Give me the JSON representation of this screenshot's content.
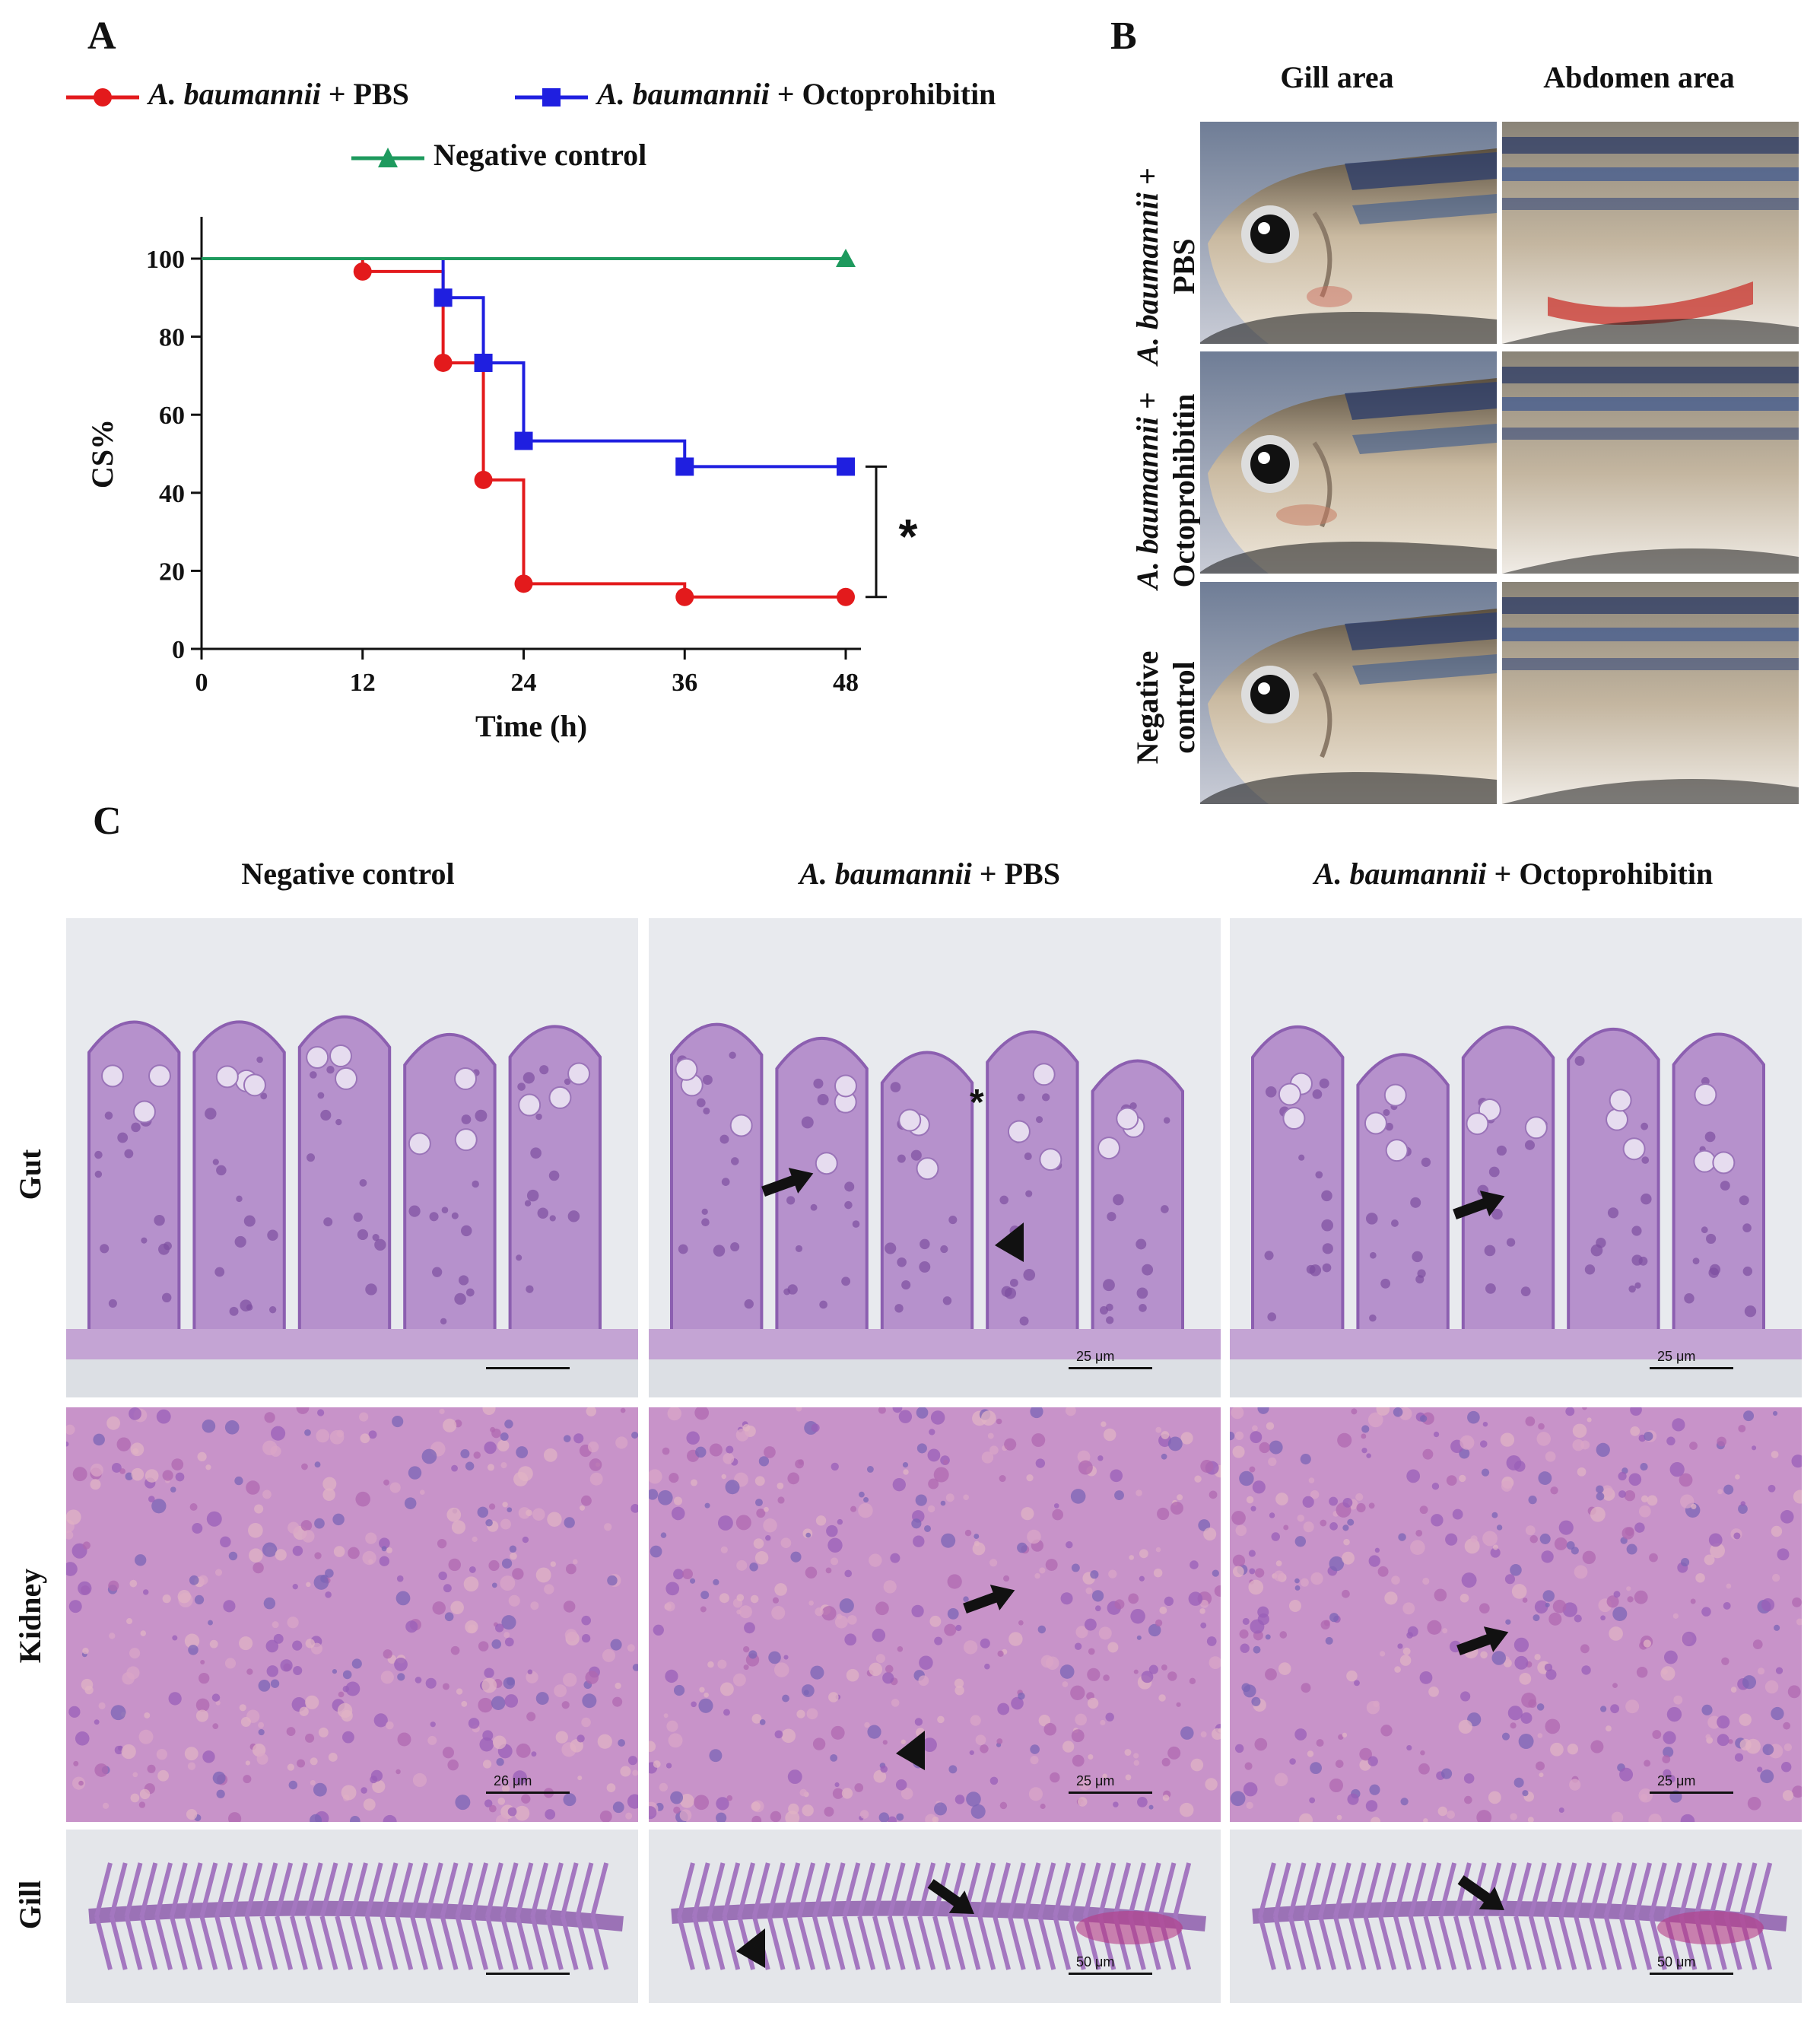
{
  "panel_a": {
    "letter": "A",
    "legend": [
      {
        "italic": "A. baumannii",
        "rest": " + PBS",
        "color": "#e31a1c",
        "marker": "circle"
      },
      {
        "italic": "A. baumannii",
        "rest": " + Octoprohibitin",
        "color": "#1f1fe0",
        "marker": "square"
      },
      {
        "italic": "",
        "rest": "Negative control",
        "color": "#1e9a5e",
        "marker": "triangle"
      }
    ],
    "significance": "*"
  },
  "chart_data": {
    "type": "line",
    "step": true,
    "xlabel": "Time  (h)",
    "ylabel": "CS%",
    "xlim": [
      0,
      48
    ],
    "ylim": [
      0,
      100
    ],
    "xticks": [
      0,
      12,
      24,
      36,
      48
    ],
    "yticks": [
      0,
      20,
      40,
      60,
      80,
      100
    ],
    "grid": false,
    "legend_position": "top",
    "series": [
      {
        "name": "A. baumannii + PBS",
        "color": "#e31a1c",
        "marker": "circle",
        "x": [
          12,
          18,
          21,
          24,
          36,
          48
        ],
        "y": [
          96.7,
          73.3,
          43.3,
          16.7,
          13.3,
          13.3
        ]
      },
      {
        "name": "A. baumannii + Octoprohibitin",
        "color": "#1f1fe0",
        "marker": "square",
        "x": [
          18,
          21,
          24,
          36,
          48
        ],
        "y": [
          90,
          73.3,
          53.3,
          46.7,
          46.7
        ]
      },
      {
        "name": "Negative control",
        "color": "#1e9a5e",
        "marker": "triangle",
        "x": [
          48
        ],
        "y": [
          100
        ]
      }
    ]
  },
  "panel_b": {
    "letter": "B",
    "columns": [
      "Gill area",
      "Abdomen area"
    ],
    "rows": [
      {
        "line1_italic": "A. baumannii",
        "line1_rest": " +",
        "line2": "PBS"
      },
      {
        "line1_italic": "A. baumannii",
        "line1_rest": " +",
        "line2": "Octoprohibitin"
      },
      {
        "line1_italic": "",
        "line1_rest": "Negative",
        "line2": "control"
      }
    ]
  },
  "panel_c": {
    "letter": "C",
    "columns": [
      {
        "italic": "",
        "rest": "Negative control"
      },
      {
        "italic": "A. baumannii",
        "rest": " + PBS"
      },
      {
        "italic": "A. baumannii",
        "rest": " + Octoprohibitin"
      }
    ],
    "rows": [
      "Gut",
      "Kidney",
      "Gill"
    ],
    "scale_labels": {
      "gut": [
        "",
        "25 μm",
        "25 μm"
      ],
      "kidney": [
        "26 μm",
        "25 μm",
        "25 μm"
      ],
      "gill": [
        "",
        "50 μm",
        "50 μm"
      ]
    },
    "lesion_marker": "*"
  }
}
